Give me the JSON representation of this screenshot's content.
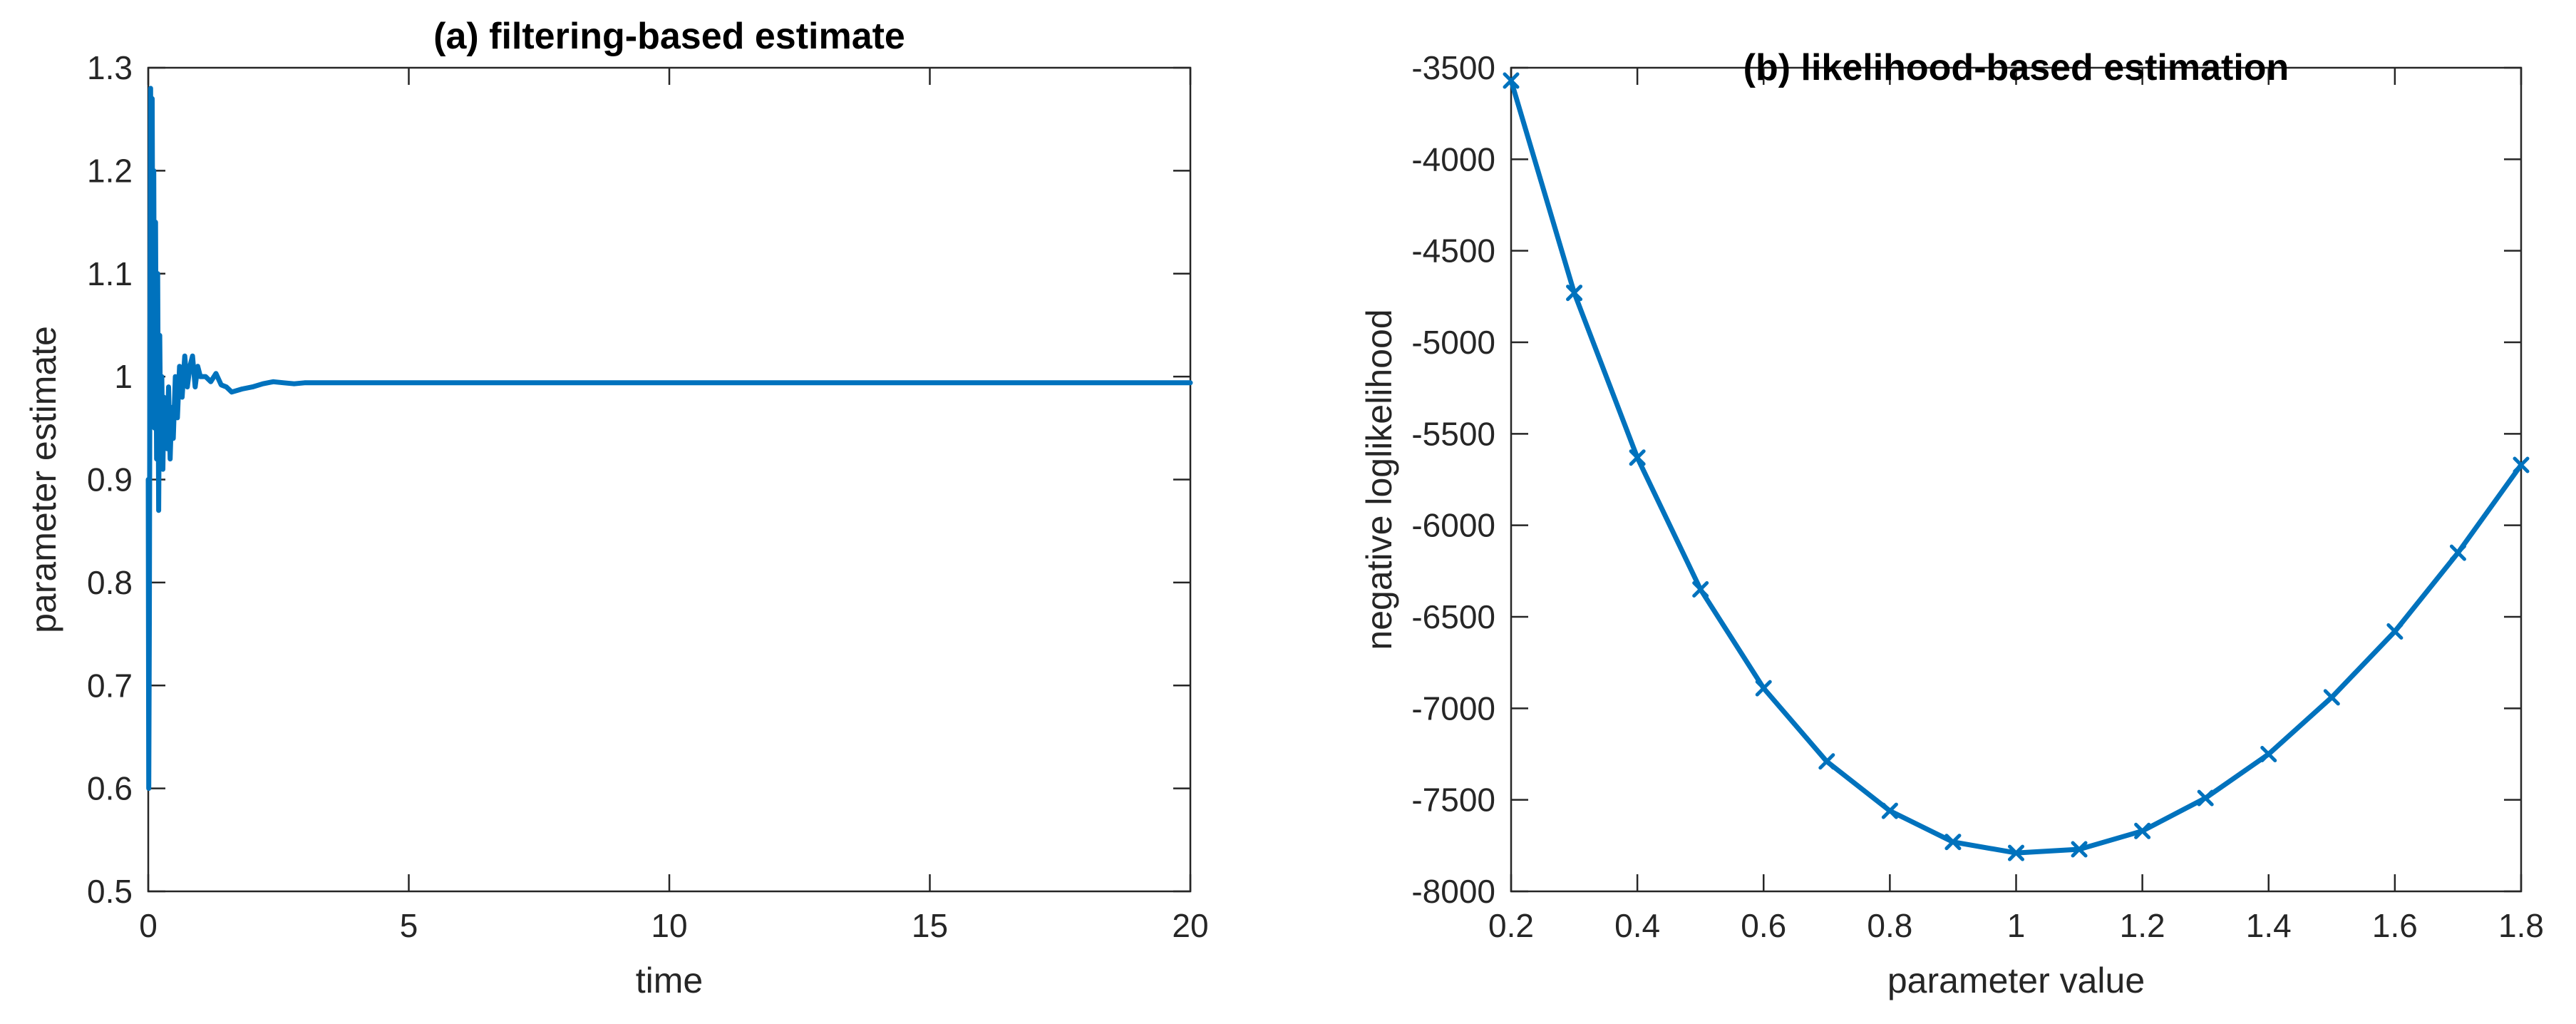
{
  "chart_data": [
    {
      "type": "line",
      "title": "(a) filtering-based estimate",
      "xlabel": "time",
      "ylabel": "parameter estimate",
      "xlim": [
        0,
        20
      ],
      "ylim": [
        0.5,
        1.3
      ],
      "xticks": [
        0,
        5,
        10,
        15,
        20
      ],
      "xtick_labels": [
        "0",
        "5",
        "10",
        "15",
        "20"
      ],
      "yticks": [
        0.5,
        0.6,
        0.7,
        0.8,
        0.9,
        1.0,
        1.1,
        1.2,
        1.3
      ],
      "ytick_labels": [
        "0.5",
        "0.6",
        "0.7",
        "0.8",
        "0.9",
        "1",
        "1.1",
        "1.2",
        "1.3"
      ],
      "grid": false,
      "color": "#0072BD",
      "series": [
        {
          "x": [
            0,
            0.01,
            0.02,
            0.03,
            0.045,
            0.06,
            0.075,
            0.09,
            0.105,
            0.12,
            0.14,
            0.16,
            0.18,
            0.2,
            0.22,
            0.24,
            0.26,
            0.28,
            0.3,
            0.33,
            0.36,
            0.39,
            0.42,
            0.45,
            0.48,
            0.52,
            0.56,
            0.6,
            0.65,
            0.7,
            0.75,
            0.8,
            0.85,
            0.9,
            0.95,
            1.0,
            1.1,
            1.2,
            1.3,
            1.4,
            1.5,
            1.6,
            1.8,
            2.0,
            2.2,
            2.4,
            2.6,
            2.8,
            3.0,
            3.5,
            4.0,
            6.0,
            10.0,
            15.0,
            20.0
          ],
          "y": [
            0.9,
            0.6,
            0.76,
            0.98,
            1.28,
            0.98,
            1.27,
            1.02,
            1.2,
            0.95,
            1.15,
            0.92,
            1.1,
            0.87,
            1.04,
            0.93,
            1.0,
            0.91,
            0.98,
            0.95,
            0.93,
            0.99,
            0.92,
            0.97,
            0.94,
            1.0,
            0.96,
            1.01,
            0.98,
            1.02,
            0.99,
            1.01,
            1.02,
            0.99,
            1.01,
            1.0,
            1.0,
            0.995,
            1.003,
            0.992,
            0.99,
            0.985,
            0.988,
            0.99,
            0.993,
            0.995,
            0.994,
            0.993,
            0.994,
            0.994,
            0.994,
            0.994,
            0.994,
            0.994,
            0.994
          ]
        }
      ]
    },
    {
      "type": "line",
      "title": "(b) likelihood-based estimation",
      "xlabel": "parameter value",
      "ylabel": "negative loglikelihood",
      "xlim": [
        0.2,
        1.8
      ],
      "ylim": [
        -8000,
        -3500
      ],
      "xticks": [
        0.2,
        0.4,
        0.6,
        0.8,
        1.0,
        1.2,
        1.4,
        1.6,
        1.8
      ],
      "xtick_labels": [
        "0.2",
        "0.4",
        "0.6",
        "0.8",
        "1",
        "1.2",
        "1.4",
        "1.6",
        "1.8"
      ],
      "yticks": [
        -8000,
        -7500,
        -7000,
        -6500,
        -6000,
        -5500,
        -5000,
        -4500,
        -4000,
        -3500
      ],
      "ytick_labels": [
        "-8000",
        "-7500",
        "-7000",
        "-6500",
        "-6000",
        "-5500",
        "-5000",
        "-4500",
        "-4000",
        "-3500"
      ],
      "grid": false,
      "color": "#0072BD",
      "marker": "x",
      "series": [
        {
          "x": [
            0.2,
            0.3,
            0.4,
            0.5,
            0.6,
            0.7,
            0.8,
            0.9,
            1.0,
            1.1,
            1.2,
            1.3,
            1.4,
            1.5,
            1.6,
            1.7,
            1.8
          ],
          "y": [
            -3570,
            -4730,
            -5630,
            -6350,
            -6890,
            -7290,
            -7560,
            -7730,
            -7790,
            -7770,
            -7670,
            -7490,
            -7250,
            -6940,
            -6580,
            -6150,
            -5670
          ]
        }
      ]
    }
  ]
}
